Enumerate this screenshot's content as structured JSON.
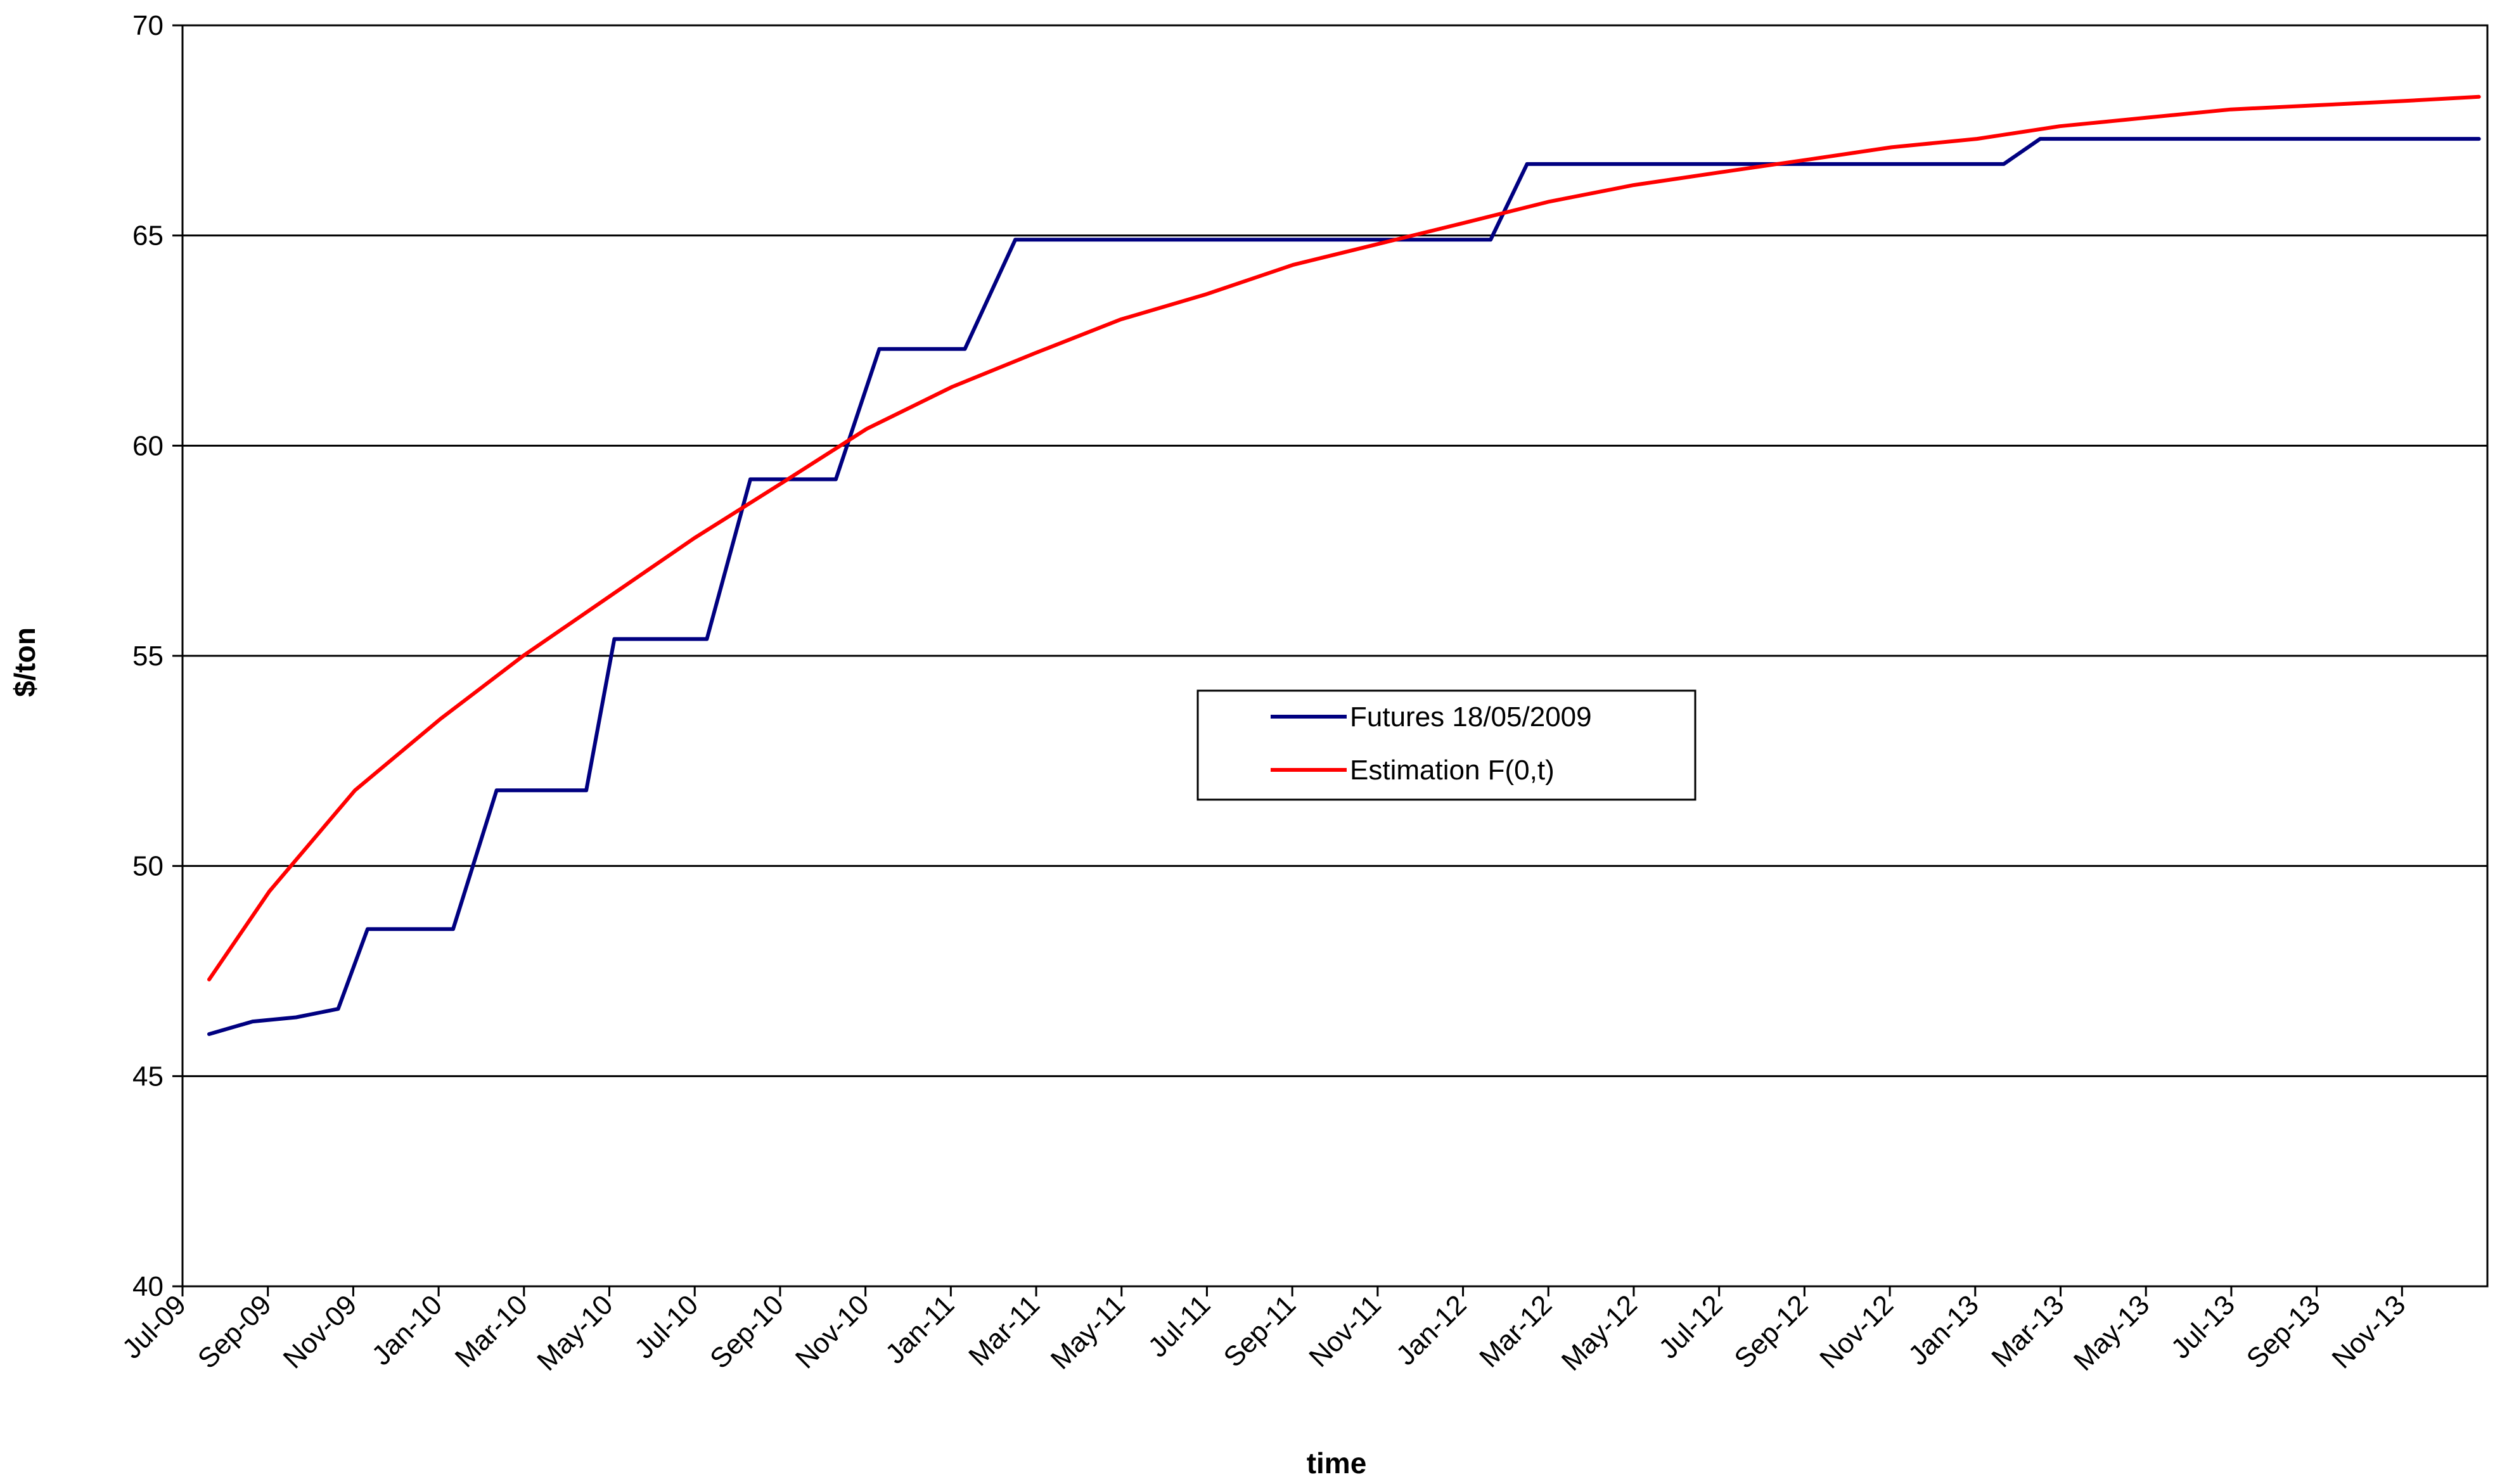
{
  "chart_data": {
    "type": "line",
    "title": "",
    "xlabel": "time",
    "ylabel": "$/ton",
    "ylim": [
      40,
      70
    ],
    "yticks": [
      40,
      45,
      50,
      55,
      60,
      65,
      70
    ],
    "xlim": [
      "2009-07",
      "2013-12"
    ],
    "xtick_labels": [
      "Jul-09",
      "Sep-09",
      "Nov-09",
      "Jan-10",
      "Mar-10",
      "May-10",
      "Jul-10",
      "Sep-10",
      "Nov-10",
      "Jan-11",
      "Mar-11",
      "May-11",
      "Jul-11",
      "Sep-11",
      "Nov-11",
      "Jan-12",
      "Mar-12",
      "May-12",
      "Jul-12",
      "Sep-12",
      "Nov-12",
      "Jan-13",
      "Mar-13",
      "May-13",
      "Jul-13",
      "Sep-13",
      "Nov-13"
    ],
    "grid": "horizontal",
    "legend_position": "center",
    "series": [
      {
        "name": "Futures 18/05/2009",
        "color": "#000080",
        "x": [
          "2009-07-20",
          "2009-08-20",
          "2009-09-20",
          "2009-10-20",
          "2009-11-10",
          "2009-12-20",
          "2010-01-10",
          "2010-02-10",
          "2010-03-15",
          "2010-04-15",
          "2010-05-05",
          "2010-06-15",
          "2010-07-10",
          "2010-08-10",
          "2010-09-10",
          "2010-10-10",
          "2010-11-10",
          "2010-12-10",
          "2011-01-10",
          "2011-02-15",
          "2012-01-20",
          "2012-02-15",
          "2013-01-20",
          "2013-02-15",
          "2013-12-25"
        ],
        "y": [
          46.0,
          46.3,
          46.4,
          46.6,
          48.5,
          48.5,
          48.5,
          51.8,
          51.8,
          51.8,
          55.4,
          55.4,
          55.4,
          59.2,
          59.2,
          59.2,
          62.3,
          62.3,
          62.3,
          64.9,
          64.9,
          66.7,
          66.7,
          67.3,
          67.3
        ]
      },
      {
        "name": "Estimation F(0,t)",
        "color": "#ff0000",
        "x": [
          "2009-07-20",
          "2009-09-01",
          "2009-11-01",
          "2010-01-01",
          "2010-03-01",
          "2010-05-01",
          "2010-07-01",
          "2010-09-01",
          "2010-11-01",
          "2011-01-01",
          "2011-03-01",
          "2011-05-01",
          "2011-07-01",
          "2011-09-01",
          "2011-11-01",
          "2012-01-01",
          "2012-03-01",
          "2012-05-01",
          "2012-07-01",
          "2012-09-01",
          "2012-11-01",
          "2013-01-01",
          "2013-03-01",
          "2013-05-01",
          "2013-07-01",
          "2013-09-01",
          "2013-11-01",
          "2013-12-25"
        ],
        "y": [
          47.3,
          49.4,
          51.8,
          53.5,
          55.0,
          56.4,
          57.8,
          59.1,
          60.4,
          61.4,
          62.2,
          63.0,
          63.6,
          64.3,
          64.8,
          65.3,
          65.8,
          66.2,
          66.5,
          66.8,
          67.1,
          67.3,
          67.6,
          67.8,
          68.0,
          68.1,
          68.2,
          68.3
        ]
      }
    ]
  }
}
